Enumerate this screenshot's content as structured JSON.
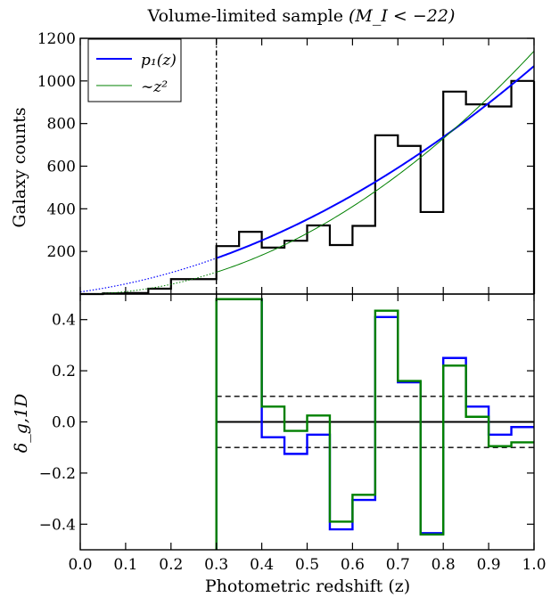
{
  "title_text": "Volume-limited sample ",
  "title_math": "(M_I < −22)",
  "colors": {
    "hist": "#000000",
    "p1": "#0000ff",
    "z2": "#008000"
  },
  "chart_data": [
    {
      "type": "line",
      "panel": "top",
      "ylabel": "Galaxy counts",
      "xlim": [
        0.0,
        1.0
      ],
      "ylim": [
        0,
        1200
      ],
      "yticks": [
        200,
        400,
        600,
        800,
        1000,
        1200
      ],
      "ytick_labels": [
        "200",
        "400",
        "600",
        "800",
        "1000",
        "1200"
      ],
      "xticks": [
        0.0,
        0.1,
        0.2,
        0.3,
        0.4,
        0.5,
        0.6,
        0.7,
        0.8,
        0.9,
        1.0
      ],
      "zcut": 0.3,
      "legend": {
        "position": "top-left",
        "entries": [
          "p₁(z)",
          "∼z²"
        ]
      },
      "histogram": {
        "bin_edges": [
          0.0,
          0.05,
          0.1,
          0.15,
          0.2,
          0.25,
          0.3,
          0.35,
          0.4,
          0.45,
          0.5,
          0.55,
          0.6,
          0.65,
          0.7,
          0.75,
          0.8,
          0.85,
          0.9,
          0.95,
          1.0
        ],
        "counts": [
          0,
          3,
          5,
          25,
          70,
          70,
          225,
          292,
          218,
          250,
          322,
          230,
          320,
          745,
          695,
          385,
          950,
          890,
          880,
          1000
        ]
      },
      "series": [
        {
          "name": "p₁(z)",
          "model": {
            "a": 10,
            "b": 300,
            "c": 760
          }
        },
        {
          "name": "∼z²",
          "model": {
            "k": 1140
          }
        }
      ]
    },
    {
      "type": "line",
      "panel": "bottom",
      "xlabel": "Photometric redshift (z)",
      "ylabel": "δ_g,1D",
      "xlim": [
        0.0,
        1.0
      ],
      "ylim": [
        -0.5,
        0.5
      ],
      "yticks": [
        -0.4,
        -0.2,
        0.0,
        0.2,
        0.4
      ],
      "ytick_labels": [
        "−0.4",
        "−0.2",
        "0.0",
        "0.2",
        "0.4"
      ],
      "xticks": [
        0.0,
        0.1,
        0.2,
        0.3,
        0.4,
        0.5,
        0.6,
        0.7,
        0.8,
        0.9,
        1.0
      ],
      "xtick_labels": [
        "0.0",
        "0.1",
        "0.2",
        "0.3",
        "0.4",
        "0.5",
        "0.6",
        "0.7",
        "0.8",
        "0.9",
        "1.0"
      ],
      "zcut": 0.3,
      "reference_lines": [
        0.1,
        0.0,
        -0.1
      ],
      "bin_edges": [
        0.3,
        0.35,
        0.4,
        0.45,
        0.5,
        0.55,
        0.6,
        0.65,
        0.7,
        0.75,
        0.8,
        0.85,
        0.9,
        0.95,
        1.0
      ],
      "series": [
        {
          "name": "p₁(z)",
          "values": [
            0.48,
            0.48,
            -0.06,
            -0.125,
            -0.05,
            -0.42,
            -0.305,
            0.41,
            0.155,
            -0.435,
            0.25,
            0.06,
            -0.05,
            -0.02
          ]
        },
        {
          "name": "∼z²",
          "values": [
            0.48,
            0.48,
            0.06,
            -0.035,
            0.025,
            -0.39,
            -0.285,
            0.435,
            0.16,
            -0.44,
            0.22,
            0.02,
            -0.095,
            -0.08
          ]
        }
      ]
    }
  ]
}
